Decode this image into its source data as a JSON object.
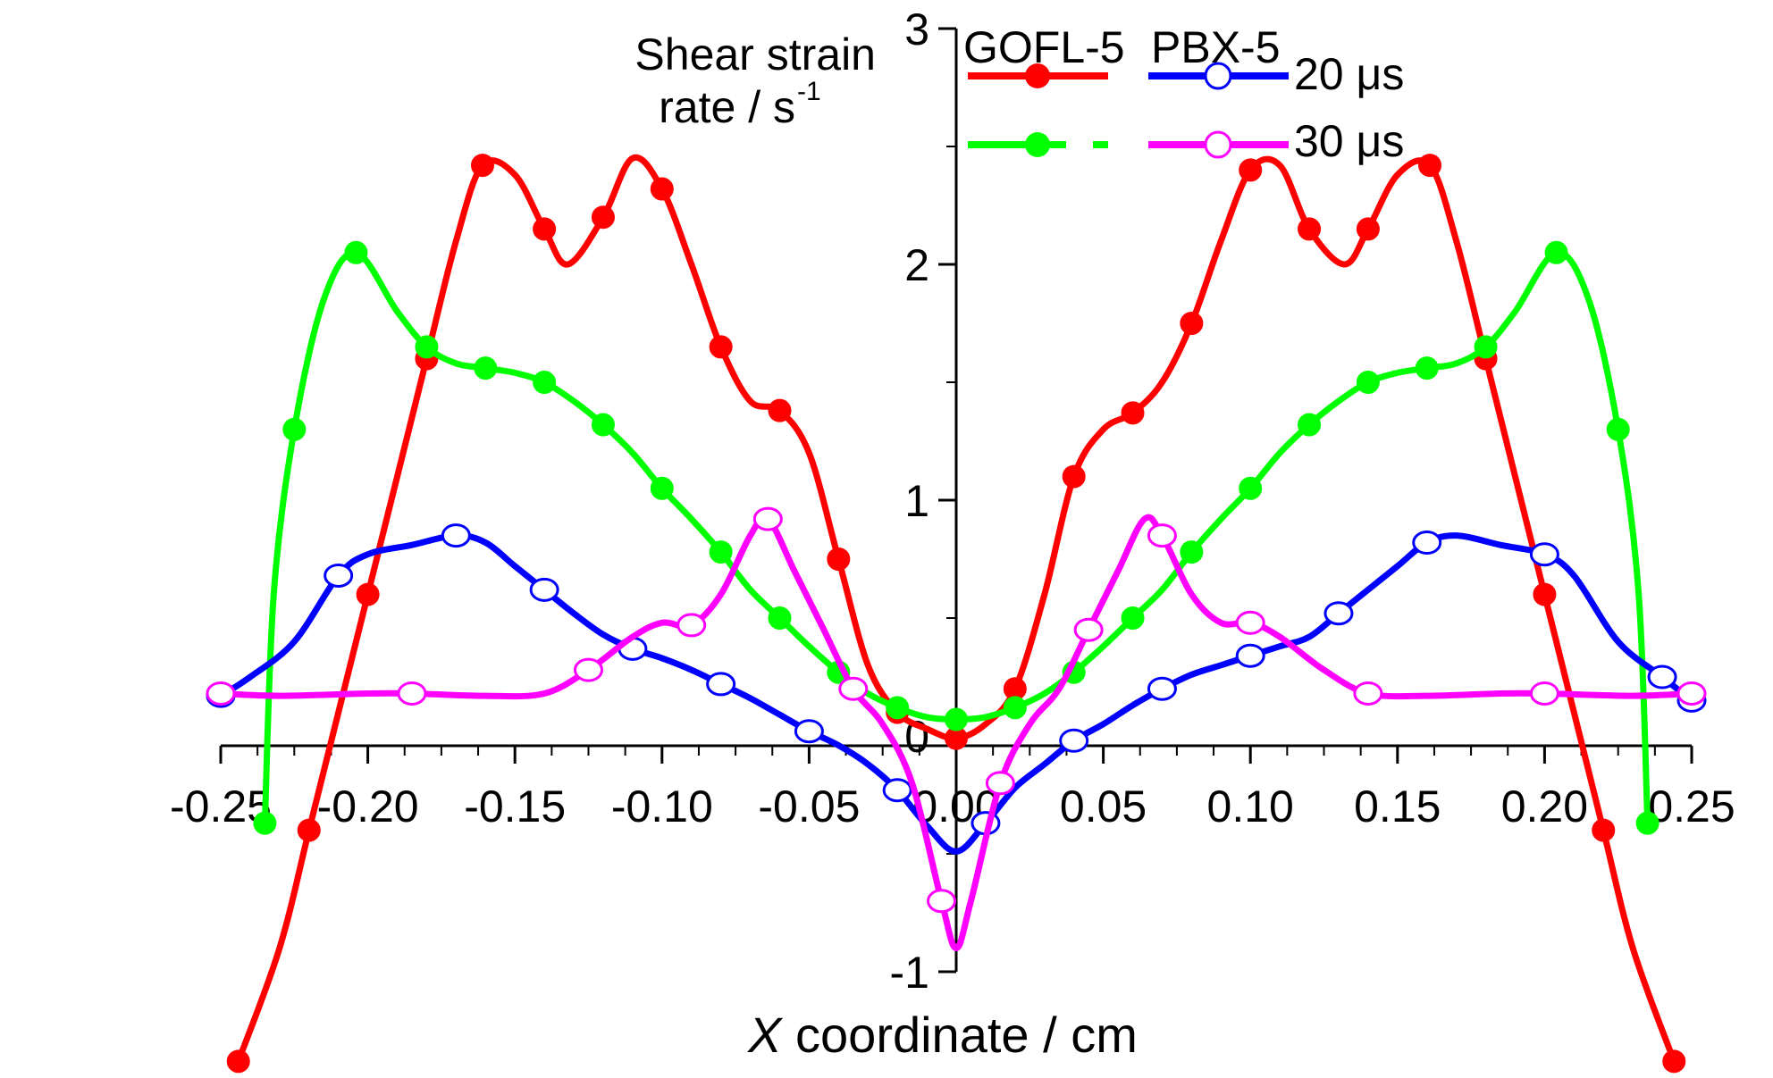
{
  "chart_data": {
    "type": "line",
    "title": "",
    "xlabel_italic": "X",
    "xlabel_rest": " coordinate / cm",
    "ylabel_line1": "Shear strain",
    "ylabel_line2": "rate / s",
    "ylabel_sup": "-1",
    "xlim": [
      -0.25,
      0.25
    ],
    "ylim": [
      -1,
      3
    ],
    "xticks": [
      "-0.25",
      "-0.20",
      "-0.15",
      "-0.10",
      "-0.05",
      "0.00",
      "0.05",
      "0.10",
      "0.15",
      "0.20",
      "0.25"
    ],
    "yticks": [
      "-1",
      "0",
      "1",
      "2",
      "3"
    ],
    "legend": {
      "placement": "top-center",
      "header_left": "GOFL-5",
      "header_right": "PBX-5",
      "row1_label": "20 μs",
      "row2_label": "30 μs"
    },
    "series": [
      {
        "material": "GOFL-5",
        "time": "20 μs",
        "color": "#ff0000",
        "marker": "filled-circle",
        "points": [
          [
            -0.244,
            -1.38
          ],
          [
            -0.23,
            -0.9
          ],
          [
            -0.22,
            -0.4
          ],
          [
            -0.21,
            0.1
          ],
          [
            -0.2,
            0.6
          ],
          [
            -0.19,
            1.1
          ],
          [
            -0.18,
            1.6
          ],
          [
            -0.17,
            2.1
          ],
          [
            -0.161,
            2.42
          ],
          [
            -0.15,
            2.38
          ],
          [
            -0.14,
            2.15
          ],
          [
            -0.132,
            2.0
          ],
          [
            -0.12,
            2.2
          ],
          [
            -0.11,
            2.45
          ],
          [
            -0.1,
            2.32
          ],
          [
            -0.09,
            2.0
          ],
          [
            -0.08,
            1.65
          ],
          [
            -0.07,
            1.42
          ],
          [
            -0.06,
            1.38
          ],
          [
            -0.05,
            1.2
          ],
          [
            -0.04,
            0.75
          ],
          [
            -0.03,
            0.3
          ],
          [
            -0.02,
            0.1
          ],
          [
            -0.01,
            0.03
          ],
          [
            0.0,
            -0.01
          ],
          [
            0.01,
            0.05
          ],
          [
            0.02,
            0.2
          ],
          [
            0.03,
            0.6
          ],
          [
            0.04,
            1.1
          ],
          [
            0.05,
            1.3
          ],
          [
            0.06,
            1.37
          ],
          [
            0.07,
            1.5
          ],
          [
            0.08,
            1.75
          ],
          [
            0.09,
            2.1
          ],
          [
            0.1,
            2.4
          ],
          [
            0.11,
            2.42
          ],
          [
            0.12,
            2.15
          ],
          [
            0.132,
            2.0
          ],
          [
            0.14,
            2.15
          ],
          [
            0.15,
            2.38
          ],
          [
            0.161,
            2.42
          ],
          [
            0.17,
            2.1
          ],
          [
            0.18,
            1.6
          ],
          [
            0.19,
            1.1
          ],
          [
            0.2,
            0.6
          ],
          [
            0.21,
            0.1
          ],
          [
            0.22,
            -0.4
          ],
          [
            0.23,
            -0.9
          ],
          [
            0.244,
            -1.38
          ]
        ]
      },
      {
        "material": "GOFL-5",
        "time": "30 μs",
        "color": "#00ff00",
        "marker": "filled-circle",
        "points": [
          [
            -0.235,
            -0.37
          ],
          [
            -0.232,
            0.6
          ],
          [
            -0.225,
            1.3
          ],
          [
            -0.215,
            1.85
          ],
          [
            -0.204,
            2.05
          ],
          [
            -0.19,
            1.8
          ],
          [
            -0.18,
            1.65
          ],
          [
            -0.17,
            1.58
          ],
          [
            -0.16,
            1.56
          ],
          [
            -0.15,
            1.54
          ],
          [
            -0.14,
            1.5
          ],
          [
            -0.13,
            1.42
          ],
          [
            -0.12,
            1.32
          ],
          [
            -0.11,
            1.2
          ],
          [
            -0.1,
            1.05
          ],
          [
            -0.09,
            0.92
          ],
          [
            -0.08,
            0.78
          ],
          [
            -0.07,
            0.62
          ],
          [
            -0.06,
            0.5
          ],
          [
            -0.05,
            0.38
          ],
          [
            -0.04,
            0.27
          ],
          [
            -0.03,
            0.18
          ],
          [
            -0.02,
            0.12
          ],
          [
            -0.01,
            0.08
          ],
          [
            0.0,
            0.07
          ],
          [
            0.01,
            0.08
          ],
          [
            0.02,
            0.12
          ],
          [
            0.03,
            0.18
          ],
          [
            0.04,
            0.27
          ],
          [
            0.05,
            0.38
          ],
          [
            0.06,
            0.5
          ],
          [
            0.07,
            0.62
          ],
          [
            0.08,
            0.78
          ],
          [
            0.09,
            0.92
          ],
          [
            0.1,
            1.05
          ],
          [
            0.11,
            1.2
          ],
          [
            0.12,
            1.32
          ],
          [
            0.13,
            1.42
          ],
          [
            0.14,
            1.5
          ],
          [
            0.15,
            1.54
          ],
          [
            0.16,
            1.56
          ],
          [
            0.17,
            1.58
          ],
          [
            0.18,
            1.65
          ],
          [
            0.19,
            1.8
          ],
          [
            0.204,
            2.05
          ],
          [
            0.215,
            1.85
          ],
          [
            0.225,
            1.3
          ],
          [
            0.232,
            0.6
          ],
          [
            0.235,
            -0.37
          ]
        ]
      },
      {
        "material": "PBX-5",
        "time": "20 μs",
        "color": "#0000ff",
        "marker": "open-circle",
        "points": [
          [
            -0.25,
            0.17
          ],
          [
            -0.24,
            0.25
          ],
          [
            -0.225,
            0.4
          ],
          [
            -0.21,
            0.68
          ],
          [
            -0.2,
            0.77
          ],
          [
            -0.185,
            0.81
          ],
          [
            -0.17,
            0.85
          ],
          [
            -0.16,
            0.82
          ],
          [
            -0.15,
            0.72
          ],
          [
            -0.14,
            0.62
          ],
          [
            -0.13,
            0.52
          ],
          [
            -0.12,
            0.43
          ],
          [
            -0.11,
            0.37
          ],
          [
            -0.1,
            0.33
          ],
          [
            -0.09,
            0.28
          ],
          [
            -0.08,
            0.22
          ],
          [
            -0.07,
            0.16
          ],
          [
            -0.06,
            0.09
          ],
          [
            -0.05,
            0.02
          ],
          [
            -0.04,
            -0.04
          ],
          [
            -0.03,
            -0.12
          ],
          [
            -0.02,
            -0.23
          ],
          [
            -0.01,
            -0.38
          ],
          [
            0.0,
            -0.49
          ],
          [
            0.01,
            -0.37
          ],
          [
            0.02,
            -0.22
          ],
          [
            0.03,
            -0.12
          ],
          [
            0.04,
            -0.02
          ],
          [
            0.05,
            0.05
          ],
          [
            0.06,
            0.13
          ],
          [
            0.07,
            0.2
          ],
          [
            0.08,
            0.26
          ],
          [
            0.09,
            0.3
          ],
          [
            0.1,
            0.34
          ],
          [
            0.11,
            0.38
          ],
          [
            0.12,
            0.42
          ],
          [
            0.13,
            0.52
          ],
          [
            0.14,
            0.62
          ],
          [
            0.15,
            0.72
          ],
          [
            0.16,
            0.82
          ],
          [
            0.17,
            0.85
          ],
          [
            0.185,
            0.81
          ],
          [
            0.2,
            0.77
          ],
          [
            0.21,
            0.68
          ],
          [
            0.225,
            0.4
          ],
          [
            0.24,
            0.25
          ],
          [
            0.25,
            0.15
          ]
        ]
      },
      {
        "material": "PBX-5",
        "time": "30 μs",
        "color": "#ff00ff",
        "marker": "open-circle",
        "points": [
          [
            -0.25,
            0.18
          ],
          [
            -0.23,
            0.17
          ],
          [
            -0.2,
            0.18
          ],
          [
            -0.185,
            0.18
          ],
          [
            -0.16,
            0.17
          ],
          [
            -0.14,
            0.18
          ],
          [
            -0.125,
            0.28
          ],
          [
            -0.11,
            0.42
          ],
          [
            -0.1,
            0.48
          ],
          [
            -0.09,
            0.47
          ],
          [
            -0.08,
            0.6
          ],
          [
            -0.07,
            0.85
          ],
          [
            -0.064,
            0.92
          ],
          [
            -0.055,
            0.7
          ],
          [
            -0.045,
            0.45
          ],
          [
            -0.035,
            0.2
          ],
          [
            -0.025,
            0.05
          ],
          [
            -0.015,
            -0.2
          ],
          [
            -0.005,
            -0.7
          ],
          [
            0.0,
            -0.9
          ],
          [
            0.005,
            -0.7
          ],
          [
            0.015,
            -0.2
          ],
          [
            0.025,
            0.05
          ],
          [
            0.035,
            0.2
          ],
          [
            0.045,
            0.45
          ],
          [
            0.055,
            0.7
          ],
          [
            0.064,
            0.92
          ],
          [
            0.07,
            0.85
          ],
          [
            0.08,
            0.6
          ],
          [
            0.09,
            0.48
          ],
          [
            0.1,
            0.48
          ],
          [
            0.11,
            0.42
          ],
          [
            0.125,
            0.28
          ],
          [
            0.14,
            0.18
          ],
          [
            0.16,
            0.17
          ],
          [
            0.185,
            0.18
          ],
          [
            0.2,
            0.18
          ],
          [
            0.23,
            0.17
          ],
          [
            0.25,
            0.18
          ]
        ]
      }
    ]
  }
}
